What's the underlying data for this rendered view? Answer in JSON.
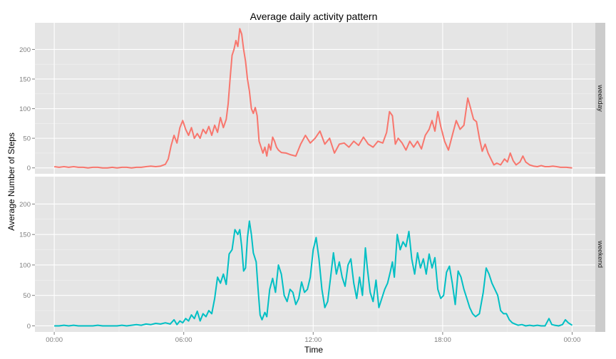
{
  "chart_data": {
    "type": "line",
    "title": "Average daily activity pattern",
    "xlabel": "Time",
    "ylabel": "Average Number of Steps",
    "xlim": [
      "00:00",
      "24:00"
    ],
    "ylim": [
      -10,
      245
    ],
    "x_ticks": [
      {
        "hour": 0,
        "label": "00:00"
      },
      {
        "hour": 6,
        "label": "06:00"
      },
      {
        "hour": 12,
        "label": "12:00"
      },
      {
        "hour": 18,
        "label": "18:00"
      },
      {
        "hour": 24,
        "label": "00:00"
      }
    ],
    "y_ticks": [
      0,
      50,
      100,
      150,
      200
    ],
    "grid": true,
    "panels": [
      {
        "strip_label": "weekday",
        "color": "#F8766D",
        "points": [
          [
            0,
            2
          ],
          [
            0.25,
            1
          ],
          [
            0.5,
            2
          ],
          [
            0.75,
            1
          ],
          [
            1,
            2
          ],
          [
            1.25,
            1
          ],
          [
            1.5,
            1
          ],
          [
            1.75,
            0
          ],
          [
            2,
            1
          ],
          [
            2.25,
            1
          ],
          [
            2.5,
            0
          ],
          [
            2.75,
            0
          ],
          [
            3,
            1
          ],
          [
            3.25,
            0
          ],
          [
            3.5,
            1
          ],
          [
            3.75,
            1
          ],
          [
            4,
            0
          ],
          [
            4.25,
            1
          ],
          [
            4.5,
            1
          ],
          [
            4.75,
            2
          ],
          [
            5,
            3
          ],
          [
            5.25,
            2
          ],
          [
            5.5,
            3
          ],
          [
            5.75,
            6
          ],
          [
            5.9,
            15
          ],
          [
            6.05,
            38
          ],
          [
            6.2,
            55
          ],
          [
            6.35,
            42
          ],
          [
            6.5,
            68
          ],
          [
            6.65,
            80
          ],
          [
            6.8,
            65
          ],
          [
            6.95,
            55
          ],
          [
            7.1,
            68
          ],
          [
            7.25,
            50
          ],
          [
            7.4,
            58
          ],
          [
            7.55,
            50
          ],
          [
            7.7,
            65
          ],
          [
            7.85,
            58
          ],
          [
            8.0,
            70
          ],
          [
            8.15,
            55
          ],
          [
            8.3,
            72
          ],
          [
            8.45,
            60
          ],
          [
            8.6,
            85
          ],
          [
            8.75,
            68
          ],
          [
            8.9,
            82
          ],
          [
            9.0,
            108
          ],
          [
            9.1,
            150
          ],
          [
            9.2,
            190
          ],
          [
            9.3,
            200
          ],
          [
            9.4,
            215
          ],
          [
            9.5,
            205
          ],
          [
            9.6,
            235
          ],
          [
            9.7,
            226
          ],
          [
            9.8,
            200
          ],
          [
            9.9,
            180
          ],
          [
            10.0,
            150
          ],
          [
            10.1,
            130
          ],
          [
            10.2,
            100
          ],
          [
            10.3,
            92
          ],
          [
            10.4,
            102
          ],
          [
            10.5,
            88
          ],
          [
            10.6,
            45
          ],
          [
            10.7,
            35
          ],
          [
            10.8,
            25
          ],
          [
            10.9,
            35
          ],
          [
            11.0,
            20
          ],
          [
            11.1,
            40
          ],
          [
            11.2,
            30
          ],
          [
            11.3,
            52
          ],
          [
            11.4,
            45
          ],
          [
            11.5,
            35
          ],
          [
            11.6,
            30
          ],
          [
            11.75,
            26
          ],
          [
            12.0,
            25
          ],
          [
            12.25,
            22
          ],
          [
            12.5,
            20
          ],
          [
            12.75,
            40
          ],
          [
            13.0,
            55
          ],
          [
            13.25,
            42
          ],
          [
            13.5,
            50
          ],
          [
            13.75,
            62
          ],
          [
            14.0,
            40
          ],
          [
            14.25,
            50
          ],
          [
            14.5,
            25
          ],
          [
            14.75,
            40
          ],
          [
            15.0,
            42
          ],
          [
            15.25,
            35
          ],
          [
            15.5,
            45
          ],
          [
            15.75,
            38
          ],
          [
            16.0,
            52
          ],
          [
            16.25,
            40
          ],
          [
            16.5,
            35
          ],
          [
            16.75,
            45
          ],
          [
            17.0,
            42
          ],
          [
            17.2,
            60
          ],
          [
            17.35,
            95
          ],
          [
            17.5,
            88
          ],
          [
            17.65,
            40
          ],
          [
            17.8,
            50
          ],
          [
            18.0,
            42
          ],
          [
            18.2,
            30
          ],
          [
            18.4,
            45
          ],
          [
            18.6,
            35
          ],
          [
            18.8,
            45
          ],
          [
            19.0,
            32
          ],
          [
            19.2,
            55
          ],
          [
            19.4,
            65
          ],
          [
            19.55,
            80
          ],
          [
            19.7,
            62
          ],
          [
            19.85,
            95
          ],
          [
            20.0,
            70
          ],
          [
            20.2,
            45
          ],
          [
            20.4,
            30
          ],
          [
            20.6,
            55
          ],
          [
            20.8,
            80
          ],
          [
            21.0,
            65
          ],
          [
            21.2,
            72
          ],
          [
            21.4,
            118
          ],
          [
            21.55,
            100
          ],
          [
            21.7,
            82
          ],
          [
            21.85,
            78
          ],
          [
            22.0,
            50
          ],
          [
            22.15,
            28
          ],
          [
            22.3,
            40
          ],
          [
            22.45,
            25
          ],
          [
            22.6,
            15
          ],
          [
            22.75,
            5
          ],
          [
            22.9,
            8
          ],
          [
            23.1,
            5
          ],
          [
            23.3,
            15
          ],
          [
            23.45,
            10
          ],
          [
            23.6,
            25
          ],
          [
            23.75,
            12
          ],
          [
            23.9,
            5
          ],
          [
            24.1,
            10
          ],
          [
            24.25,
            20
          ],
          [
            24.4,
            10
          ],
          [
            24.6,
            5
          ],
          [
            24.8,
            3
          ],
          [
            25.0,
            2
          ],
          [
            25.2,
            4
          ],
          [
            25.4,
            2
          ],
          [
            25.6,
            2
          ],
          [
            25.8,
            3
          ],
          [
            26.0,
            2
          ],
          [
            26.2,
            1
          ],
          [
            26.5,
            1
          ],
          [
            26.8,
            0
          ]
        ]
      },
      {
        "strip_label": "weekend",
        "color": "#00BFC4",
        "points": [
          [
            0,
            0
          ],
          [
            0.25,
            0
          ],
          [
            0.5,
            1
          ],
          [
            0.75,
            0
          ],
          [
            1,
            1
          ],
          [
            1.25,
            0
          ],
          [
            1.5,
            0
          ],
          [
            1.75,
            0
          ],
          [
            2,
            0
          ],
          [
            2.25,
            1
          ],
          [
            2.5,
            0
          ],
          [
            2.75,
            0
          ],
          [
            3,
            0
          ],
          [
            3.25,
            0
          ],
          [
            3.5,
            1
          ],
          [
            3.75,
            0
          ],
          [
            4,
            1
          ],
          [
            4.25,
            2
          ],
          [
            4.5,
            1
          ],
          [
            4.75,
            3
          ],
          [
            5,
            2
          ],
          [
            5.25,
            4
          ],
          [
            5.5,
            3
          ],
          [
            5.75,
            5
          ],
          [
            6.0,
            3
          ],
          [
            6.2,
            10
          ],
          [
            6.35,
            2
          ],
          [
            6.5,
            8
          ],
          [
            6.65,
            5
          ],
          [
            6.8,
            12
          ],
          [
            6.95,
            8
          ],
          [
            7.1,
            18
          ],
          [
            7.25,
            12
          ],
          [
            7.4,
            24
          ],
          [
            7.55,
            8
          ],
          [
            7.7,
            20
          ],
          [
            7.85,
            15
          ],
          [
            8.0,
            25
          ],
          [
            8.15,
            20
          ],
          [
            8.3,
            45
          ],
          [
            8.45,
            80
          ],
          [
            8.6,
            70
          ],
          [
            8.75,
            85
          ],
          [
            8.9,
            68
          ],
          [
            9.05,
            118
          ],
          [
            9.2,
            125
          ],
          [
            9.35,
            158
          ],
          [
            9.5,
            150
          ],
          [
            9.6,
            158
          ],
          [
            9.7,
            130
          ],
          [
            9.8,
            90
          ],
          [
            9.9,
            95
          ],
          [
            10.0,
            145
          ],
          [
            10.1,
            172
          ],
          [
            10.2,
            150
          ],
          [
            10.3,
            120
          ],
          [
            10.45,
            105
          ],
          [
            10.55,
            60
          ],
          [
            10.65,
            18
          ],
          [
            10.75,
            10
          ],
          [
            10.9,
            22
          ],
          [
            11.0,
            15
          ],
          [
            11.15,
            60
          ],
          [
            11.3,
            78
          ],
          [
            11.45,
            55
          ],
          [
            11.6,
            100
          ],
          [
            11.75,
            85
          ],
          [
            11.9,
            50
          ],
          [
            12.05,
            40
          ],
          [
            12.2,
            60
          ],
          [
            12.35,
            55
          ],
          [
            12.5,
            35
          ],
          [
            12.65,
            45
          ],
          [
            12.8,
            72
          ],
          [
            12.95,
            55
          ],
          [
            13.1,
            60
          ],
          [
            13.25,
            80
          ],
          [
            13.4,
            125
          ],
          [
            13.55,
            145
          ],
          [
            13.7,
            110
          ],
          [
            13.85,
            60
          ],
          [
            14.0,
            30
          ],
          [
            14.15,
            40
          ],
          [
            14.3,
            80
          ],
          [
            14.45,
            120
          ],
          [
            14.6,
            85
          ],
          [
            14.75,
            105
          ],
          [
            14.9,
            80
          ],
          [
            15.05,
            65
          ],
          [
            15.2,
            100
          ],
          [
            15.35,
            110
          ],
          [
            15.5,
            70
          ],
          [
            15.65,
            45
          ],
          [
            15.8,
            80
          ],
          [
            15.95,
            50
          ],
          [
            16.1,
            128
          ],
          [
            16.2,
            95
          ],
          [
            16.35,
            55
          ],
          [
            16.5,
            40
          ],
          [
            16.65,
            75
          ],
          [
            16.8,
            30
          ],
          [
            16.95,
            45
          ],
          [
            17.1,
            60
          ],
          [
            17.25,
            70
          ],
          [
            17.4,
            90
          ],
          [
            17.5,
            105
          ],
          [
            17.6,
            80
          ],
          [
            17.75,
            150
          ],
          [
            17.9,
            125
          ],
          [
            18.05,
            138
          ],
          [
            18.2,
            130
          ],
          [
            18.35,
            155
          ],
          [
            18.5,
            110
          ],
          [
            18.65,
            85
          ],
          [
            18.8,
            120
          ],
          [
            18.95,
            95
          ],
          [
            19.1,
            110
          ],
          [
            19.25,
            85
          ],
          [
            19.4,
            118
          ],
          [
            19.55,
            95
          ],
          [
            19.7,
            112
          ],
          [
            19.85,
            60
          ],
          [
            20.0,
            45
          ],
          [
            20.15,
            50
          ],
          [
            20.3,
            88
          ],
          [
            20.45,
            98
          ],
          [
            20.6,
            70
          ],
          [
            20.75,
            35
          ],
          [
            20.9,
            90
          ],
          [
            21.05,
            80
          ],
          [
            21.2,
            60
          ],
          [
            21.35,
            45
          ],
          [
            21.5,
            30
          ],
          [
            21.65,
            20
          ],
          [
            21.8,
            15
          ],
          [
            22.0,
            20
          ],
          [
            22.2,
            55
          ],
          [
            22.35,
            95
          ],
          [
            22.5,
            85
          ],
          [
            22.65,
            70
          ],
          [
            22.8,
            60
          ],
          [
            22.95,
            50
          ],
          [
            23.1,
            25
          ],
          [
            23.25,
            20
          ],
          [
            23.4,
            20
          ],
          [
            23.55,
            10
          ],
          [
            23.7,
            5
          ],
          [
            23.85,
            3
          ],
          [
            24.0,
            1
          ],
          [
            24.2,
            2
          ],
          [
            24.4,
            0
          ],
          [
            24.6,
            1
          ],
          [
            24.8,
            0
          ],
          [
            25.0,
            1
          ],
          [
            25.2,
            0
          ],
          [
            25.4,
            0
          ],
          [
            25.6,
            12
          ],
          [
            25.75,
            2
          ],
          [
            25.9,
            1
          ],
          [
            26.1,
            0
          ],
          [
            26.3,
            2
          ],
          [
            26.45,
            10
          ],
          [
            26.6,
            5
          ],
          [
            26.8,
            1
          ]
        ]
      }
    ]
  }
}
